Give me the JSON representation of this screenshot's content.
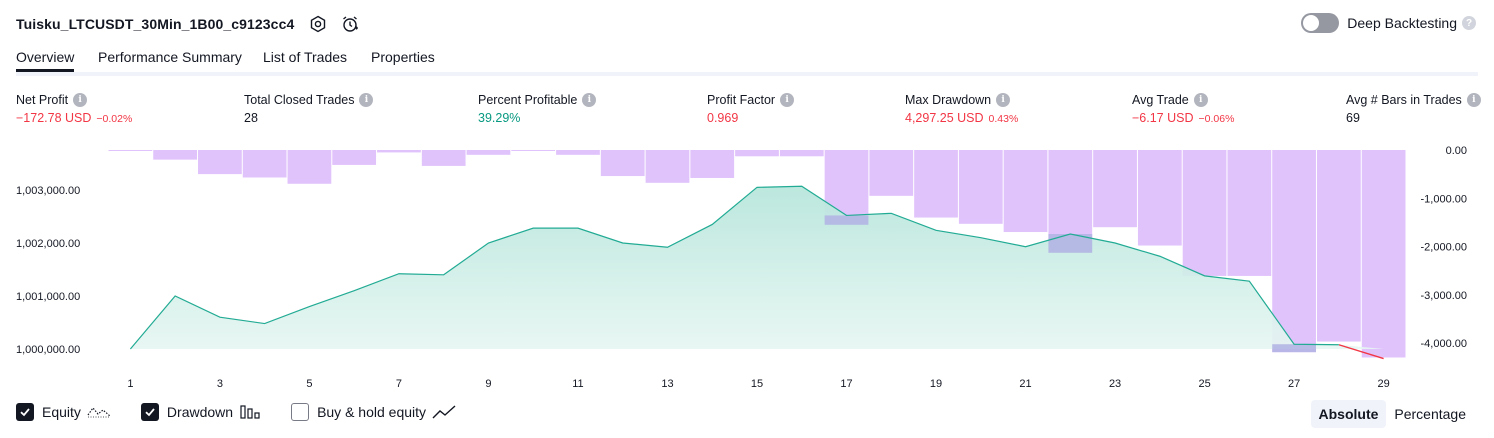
{
  "header": {
    "strategy_name": "Tuisku_LTCUSDT_30Min_1B00_c9123cc4",
    "settings_icon": "gear-icon",
    "alert_icon": "alarm-clock-icon"
  },
  "deep_backtesting": {
    "label": "Deep Backtesting",
    "enabled": false,
    "help": "?"
  },
  "tabs": [
    {
      "label": "Overview",
      "active": true
    },
    {
      "label": "Performance Summary",
      "active": false
    },
    {
      "label": "List of Trades",
      "active": false
    },
    {
      "label": "Properties",
      "active": false
    }
  ],
  "metrics": [
    {
      "label": "Net Profit",
      "value": "−172.78 USD",
      "pct": "−0.02%",
      "tone": "red"
    },
    {
      "label": "Total Closed Trades",
      "value": "28",
      "pct": "",
      "tone": "dark"
    },
    {
      "label": "Percent Profitable",
      "value": "39.29%",
      "pct": "",
      "tone": "green"
    },
    {
      "label": "Profit Factor",
      "value": "0.969",
      "pct": "",
      "tone": "red"
    },
    {
      "label": "Max Drawdown",
      "value": "4,297.25 USD",
      "pct": "0.43%",
      "tone": "red"
    },
    {
      "label": "Avg Trade",
      "value": "−6.17 USD",
      "pct": "−0.06%",
      "tone": "red"
    },
    {
      "label": "Avg # Bars in Trades",
      "value": "69",
      "pct": "",
      "tone": "dark"
    }
  ],
  "info_glyph": "i",
  "chart_data": {
    "type": "area",
    "x": [
      1,
      2,
      3,
      4,
      5,
      6,
      7,
      8,
      9,
      10,
      11,
      12,
      13,
      14,
      15,
      16,
      17,
      18,
      19,
      20,
      21,
      22,
      23,
      24,
      25,
      26,
      27,
      28,
      29
    ],
    "x_tick_labels": [
      "1",
      "3",
      "5",
      "7",
      "9",
      "11",
      "13",
      "15",
      "17",
      "19",
      "21",
      "23",
      "25",
      "27",
      "29"
    ],
    "series": [
      {
        "kind": "equity_line",
        "values": [
          1000000,
          1001000,
          1000600,
          1000480,
          1000800,
          1001100,
          1001420,
          1001400,
          1002000,
          1002280,
          1002280,
          1002000,
          1001920,
          1002350,
          1003050,
          1003070,
          1002520,
          1002560,
          1002240,
          1002100,
          1001930,
          1002170,
          1002000,
          1001750,
          1001380,
          1001280,
          1000090,
          1000080,
          999820
        ]
      },
      {
        "kind": "drawdown_bars",
        "values": [
          0,
          -200,
          -500,
          -570,
          -700,
          -310,
          -50,
          -330,
          -100,
          0,
          -100,
          -540,
          -680,
          -580,
          -130,
          -130,
          -1550,
          -950,
          -1400,
          -1530,
          -1700,
          -2130,
          -1600,
          -1980,
          -2610,
          -2610,
          -4190,
          -3970,
          -4300
        ]
      }
    ],
    "left_axis": {
      "ticks": [
        "1,000,000.00",
        "1,001,000.00",
        "1,002,000.00",
        "1,003,000.00"
      ],
      "tick_values": [
        1000000,
        1001000,
        1002000,
        1003000
      ]
    },
    "right_axis": {
      "ticks": [
        "0.00",
        "-1,000.00",
        "-2,000.00",
        "-3,000.00",
        "-4,000.00"
      ],
      "tick_values": [
        0,
        -1000,
        -2000,
        -3000,
        -4000
      ]
    },
    "colors": {
      "equity_line": "#22ab94",
      "equity_fill": "#b8e6dc",
      "drawdown_bar": "#e1c3fc",
      "overlap_bar": "#b2b5e3",
      "below_line": "#f23645"
    },
    "grid": false
  },
  "legend": [
    {
      "label": "Equity",
      "checked": true,
      "icon": "equity-line-icon"
    },
    {
      "label": "Drawdown",
      "checked": true,
      "icon": "drawdown-bars-icon"
    },
    {
      "label": "Buy & hold equity",
      "checked": false,
      "icon": "buy-hold-line-icon"
    }
  ],
  "mode": {
    "options": [
      "Absolute",
      "Percentage"
    ],
    "selected": "Absolute"
  }
}
